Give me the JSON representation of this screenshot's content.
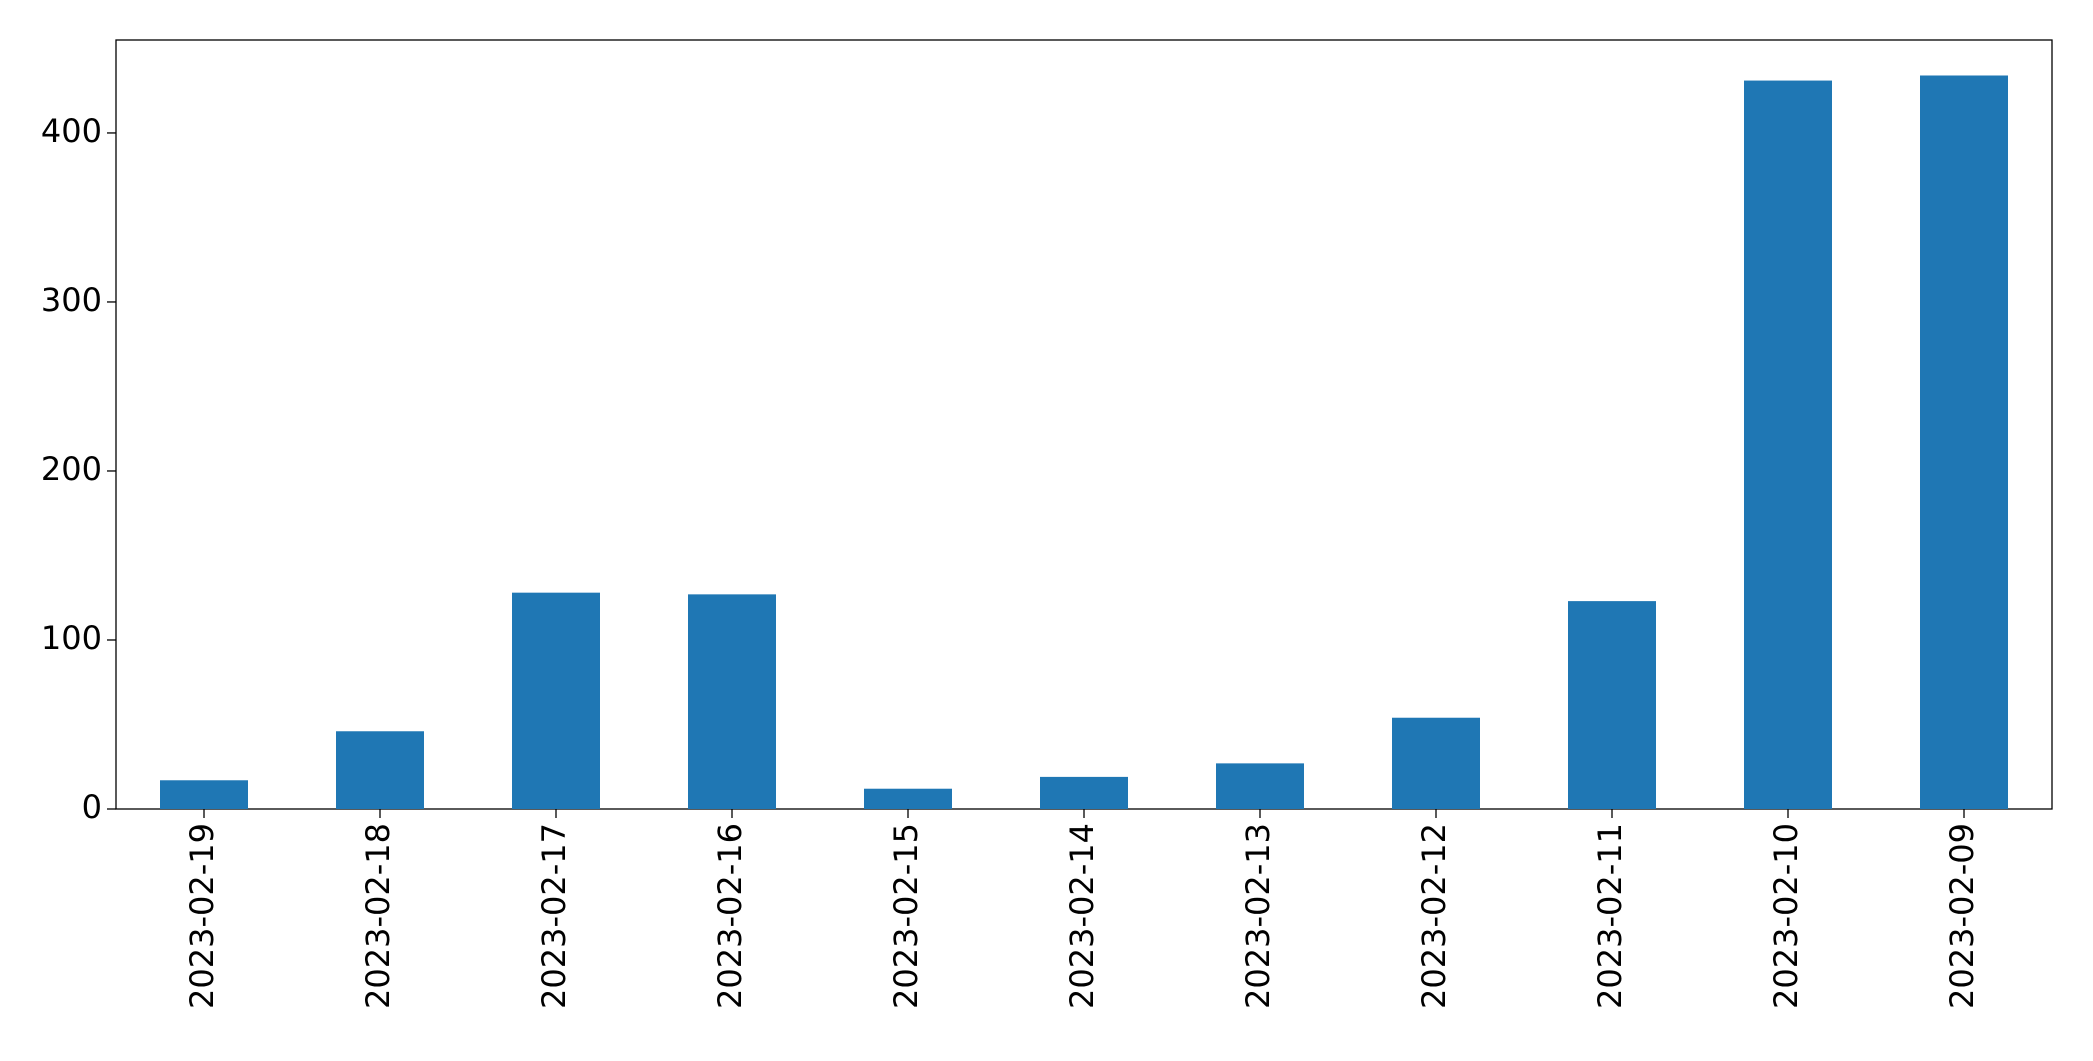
{
  "chart_data": {
    "type": "bar",
    "categories": [
      "2023-02-19",
      "2023-02-18",
      "2023-02-17",
      "2023-02-16",
      "2023-02-15",
      "2023-02-14",
      "2023-02-13",
      "2023-02-12",
      "2023-02-11",
      "2023-02-10",
      "2023-02-09"
    ],
    "values": [
      17,
      46,
      128,
      127,
      12,
      19,
      27,
      54,
      123,
      431,
      434
    ],
    "color": "#1f77b4",
    "ylim": [
      0,
      455
    ],
    "yticks": [
      0,
      100,
      200,
      300,
      400
    ],
    "grid": false
  }
}
